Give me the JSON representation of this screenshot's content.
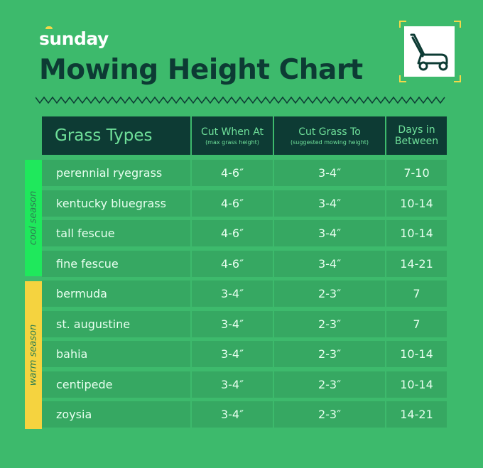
{
  "brand": "sunday",
  "title": "Mowing Height Chart",
  "icon": "lawn-mower-icon",
  "colors": {
    "background": "#3dba6c",
    "header": "#0d3b34",
    "cool": "#1fe85c",
    "warm": "#f5d33f"
  },
  "header": {
    "grass_types": "Grass Types",
    "cut_when": "Cut When At",
    "cut_when_sub": "(max grass height)",
    "cut_to": "Cut Grass To",
    "cut_to_sub": "(suggested mowing height)",
    "days_line1": "Days in",
    "days_line2": "Between"
  },
  "seasons": {
    "cool": "cool season",
    "warm": "warm season"
  },
  "rows": [
    {
      "grass": "perennial ryegrass",
      "cut_when": "4-6″",
      "cut_to": "3-4″",
      "days": "7-10"
    },
    {
      "grass": "kentucky bluegrass",
      "cut_when": "4-6″",
      "cut_to": "3-4″",
      "days": "10-14"
    },
    {
      "grass": "tall fescue",
      "cut_when": "4-6″",
      "cut_to": "3-4″",
      "days": "10-14"
    },
    {
      "grass": "fine fescue",
      "cut_when": "4-6″",
      "cut_to": "3-4″",
      "days": "14-21"
    },
    {
      "grass": "bermuda",
      "cut_when": "3-4″",
      "cut_to": "2-3″",
      "days": "7"
    },
    {
      "grass": "st. augustine",
      "cut_when": "3-4″",
      "cut_to": "2-3″",
      "days": "7"
    },
    {
      "grass": "bahia",
      "cut_when": "3-4″",
      "cut_to": "2-3″",
      "days": "10-14"
    },
    {
      "grass": "centipede",
      "cut_when": "3-4″",
      "cut_to": "2-3″",
      "days": "10-14"
    },
    {
      "grass": "zoysia",
      "cut_when": "3-4″",
      "cut_to": "2-3″",
      "days": "14-21"
    }
  ]
}
